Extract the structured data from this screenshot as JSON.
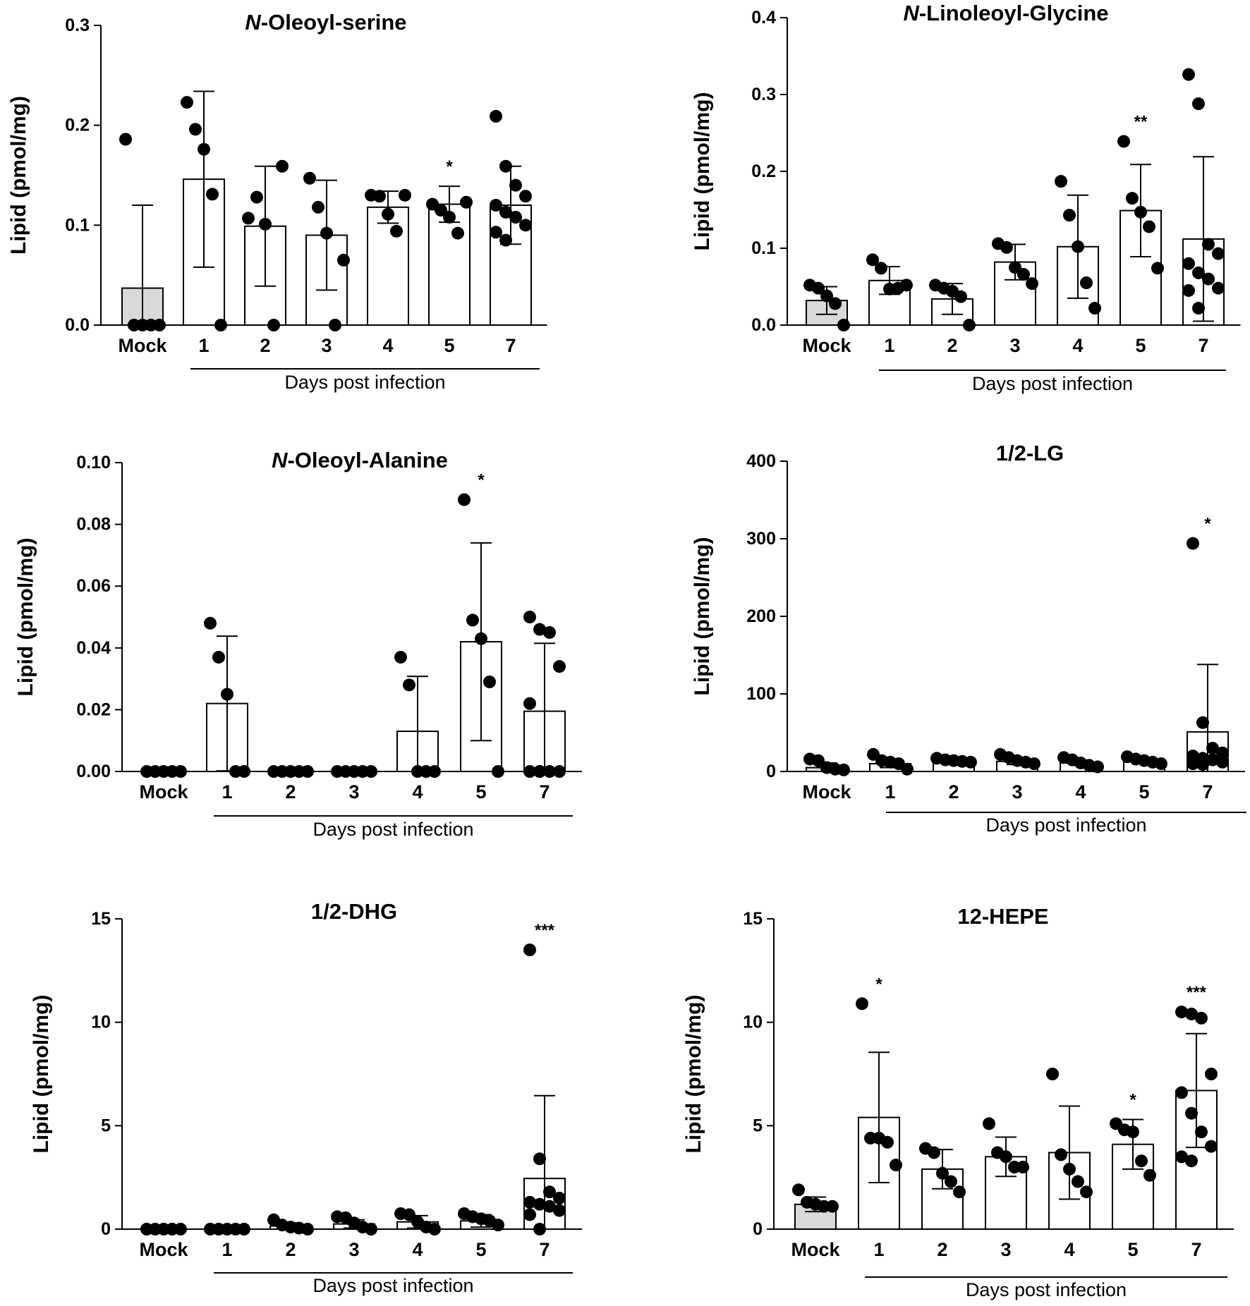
{
  "figure": {
    "colors": {
      "mock_fill": "#d9d9d9",
      "bar_fill": "#ffffff",
      "ink": "#000000"
    }
  },
  "chart_data": [
    {
      "id": "p1",
      "type": "bar",
      "title": "N-Oleoyl-serine",
      "title_italic_prefix": "N",
      "ylabel": "Lipid (pmol/mg)",
      "xlabel": "Days post infection",
      "categories": [
        "Mock",
        "1",
        "2",
        "3",
        "4",
        "5",
        "7"
      ],
      "ylim": [
        0,
        0.3
      ],
      "yticks": [
        "0.0",
        "0.1",
        "0.2",
        "0.3"
      ],
      "ytick_values": [
        0,
        0.1,
        0.2,
        0.3
      ],
      "means": [
        0.037,
        0.146,
        0.099,
        0.09,
        0.118,
        0.121,
        0.12
      ],
      "sd": [
        0.083,
        0.088,
        0.06,
        0.055,
        0.016,
        0.018,
        0.039
      ],
      "points": [
        [
          0.186,
          0,
          0,
          0,
          0
        ],
        [
          0.223,
          0.196,
          0.176,
          0.131,
          0
        ],
        [
          0.107,
          0.128,
          0.101,
          0,
          0.159
        ],
        [
          0.147,
          0.118,
          0.092,
          0,
          0.065
        ],
        [
          0.13,
          0.129,
          0.111,
          0.094,
          0.13
        ],
        [
          0.121,
          0.115,
          0.108,
          0.092,
          0.123
        ],
        [
          0.209,
          0.159,
          0.14,
          0.129,
          0.12,
          0.113,
          0.108,
          0.1,
          0.093,
          0.085
        ]
      ],
      "significance": [
        "",
        "",
        "",
        "",
        "",
        "*",
        ""
      ]
    },
    {
      "id": "p2",
      "type": "bar",
      "title": "N-Linoleoyl-Glycine",
      "title_italic_prefix": "N",
      "ylabel": "Lipid (pmol/mg)",
      "xlabel": "Days post infection",
      "categories": [
        "Mock",
        "1",
        "2",
        "3",
        "4",
        "5",
        "7"
      ],
      "ylim": [
        0,
        0.4
      ],
      "yticks": [
        "0.0",
        "0.1",
        "0.2",
        "0.3",
        "0.4"
      ],
      "ytick_values": [
        0,
        0.1,
        0.2,
        0.3,
        0.4
      ],
      "means": [
        0.032,
        0.058,
        0.034,
        0.082,
        0.102,
        0.149,
        0.112
      ],
      "sd": [
        0.018,
        0.018,
        0.02,
        0.023,
        0.067,
        0.06,
        0.107
      ],
      "points": [
        [
          0.052,
          0.048,
          0.038,
          0.028,
          0
        ],
        [
          0.085,
          0.074,
          0.047,
          0.048,
          0.052
        ],
        [
          0.052,
          0.048,
          0.044,
          0.037,
          0
        ],
        [
          0.106,
          0.101,
          0.075,
          0.066,
          0.054
        ],
        [
          0.187,
          0.143,
          0.102,
          0.055,
          0.022
        ],
        [
          0.239,
          0.165,
          0.147,
          0.128,
          0.074
        ],
        [
          0.326,
          0.288,
          0.105,
          0.093,
          0.08,
          0.068,
          0.06,
          0.048,
          0.045,
          0.022
        ]
      ],
      "significance": [
        "",
        "",
        "",
        "",
        "",
        "**",
        ""
      ]
    },
    {
      "id": "p3",
      "type": "bar",
      "title": "N-Oleoyl-Alanine",
      "title_italic_prefix": "N",
      "ylabel": "Lipid (pmol/mg)",
      "xlabel": "Days post infection",
      "categories": [
        "Mock",
        "1",
        "2",
        "3",
        "4",
        "5",
        "7"
      ],
      "ylim": [
        0,
        0.1
      ],
      "yticks": [
        "0.00",
        "0.02",
        "0.04",
        "0.06",
        "0.08",
        "0.10"
      ],
      "ytick_values": [
        0,
        0.02,
        0.04,
        0.06,
        0.08,
        0.1
      ],
      "means": [
        0,
        0.022,
        0,
        0,
        0.013,
        0.042,
        0.0195
      ],
      "sd": [
        0,
        0.0218,
        0,
        0,
        0.0178,
        0.032,
        0.022
      ],
      "points": [
        [
          0,
          0,
          0,
          0,
          0
        ],
        [
          0.048,
          0.037,
          0.025,
          0,
          0
        ],
        [
          0,
          0,
          0,
          0,
          0
        ],
        [
          0,
          0,
          0,
          0,
          0
        ],
        [
          0.037,
          0.028,
          0,
          0,
          0
        ],
        [
          0.088,
          0.049,
          0.043,
          0.029,
          0
        ],
        [
          0.05,
          0.046,
          0.045,
          0.034,
          0.022,
          0,
          0,
          0,
          0,
          0
        ]
      ],
      "significance": [
        "",
        "",
        "",
        "",
        "",
        "*",
        ""
      ]
    },
    {
      "id": "p4",
      "type": "bar",
      "title": "1/2-LG",
      "title_italic_prefix": "",
      "ylabel": "Lipid (pmol/mg)",
      "xlabel": "Days post infection",
      "categories": [
        "Mock",
        "1",
        "2",
        "3",
        "4",
        "5",
        "7"
      ],
      "ylim": [
        0,
        400
      ],
      "yticks": [
        "0",
        "100",
        "200",
        "300",
        "400"
      ],
      "ytick_values": [
        0,
        100,
        200,
        300,
        400
      ],
      "means": [
        5,
        10,
        14,
        13,
        11,
        13,
        51
      ],
      "sd": [
        6,
        5,
        2,
        4,
        3,
        3,
        87
      ],
      "points": [
        [
          16,
          14,
          5,
          3,
          2
        ],
        [
          22,
          14,
          12,
          10,
          3
        ],
        [
          17,
          15,
          14,
          13,
          12
        ],
        [
          22,
          18,
          14,
          12,
          10
        ],
        [
          18,
          15,
          11,
          8,
          6
        ],
        [
          19,
          16,
          14,
          12,
          10
        ],
        [
          294,
          63,
          30,
          24,
          20,
          17,
          15,
          12,
          10,
          9
        ]
      ],
      "significance": [
        "",
        "",
        "",
        "",
        "",
        "",
        "*"
      ]
    },
    {
      "id": "p5",
      "type": "bar",
      "title": "1/2-DHG",
      "title_italic_prefix": "",
      "ylabel": "Lipid (pmol/mg)",
      "xlabel": "Days post infection",
      "categories": [
        "Mock",
        "1",
        "2",
        "3",
        "4",
        "5",
        "7"
      ],
      "ylim": [
        0,
        15
      ],
      "yticks": [
        "0",
        "5",
        "10",
        "15"
      ],
      "ytick_values": [
        0,
        5,
        10,
        15
      ],
      "means": [
        0,
        0,
        0.15,
        0.25,
        0.35,
        0.4,
        2.45
      ],
      "sd": [
        0,
        0,
        0.15,
        0.2,
        0.3,
        0.3,
        4.0
      ],
      "points": [
        [
          0,
          0,
          0,
          0,
          0
        ],
        [
          0,
          0,
          0,
          0,
          0
        ],
        [
          0.45,
          0.2,
          0.1,
          0.05,
          0
        ],
        [
          0.6,
          0.55,
          0.3,
          0.1,
          0
        ],
        [
          0.75,
          0.7,
          0.35,
          0.1,
          0
        ],
        [
          0.75,
          0.6,
          0.5,
          0.4,
          0.2
        ],
        [
          13.5,
          3.4,
          1.8,
          1.5,
          1.3,
          1.2,
          1.1,
          0.9,
          0.7,
          0
        ]
      ],
      "significance": [
        "",
        "",
        "",
        "",
        "",
        "",
        "***"
      ]
    },
    {
      "id": "p6",
      "type": "bar",
      "title": "12-HEPE",
      "title_italic_prefix": "",
      "ylabel": "Lipid (pmol/mg)",
      "xlabel": "Days post infection",
      "categories": [
        "Mock",
        "1",
        "2",
        "3",
        "4",
        "5",
        "7"
      ],
      "ylim": [
        0,
        15
      ],
      "yticks": [
        "0",
        "5",
        "10",
        "15"
      ],
      "ytick_values": [
        0,
        5,
        10,
        15
      ],
      "means": [
        1.2,
        5.4,
        2.9,
        3.5,
        3.7,
        4.1,
        6.7
      ],
      "sd": [
        0.35,
        3.15,
        0.95,
        0.95,
        2.25,
        1.2,
        2.75
      ],
      "points": [
        [
          1.9,
          1.3,
          1.2,
          1.1,
          1.1
        ],
        [
          10.9,
          4.4,
          4.4,
          4.2,
          3.1
        ],
        [
          3.9,
          3.7,
          2.7,
          2.3,
          1.8
        ],
        [
          5.1,
          3.7,
          3.5,
          3.0,
          3.0
        ],
        [
          7.5,
          3.6,
          2.9,
          2.3,
          1.8
        ],
        [
          5.1,
          4.8,
          4.7,
          3.3,
          2.6
        ],
        [
          10.5,
          10.4,
          10.2,
          7.5,
          6.6,
          5.6,
          4.7,
          4.0,
          3.5,
          3.3
        ]
      ],
      "significance": [
        "",
        "*",
        "",
        "",
        "",
        "*",
        "***"
      ]
    }
  ]
}
